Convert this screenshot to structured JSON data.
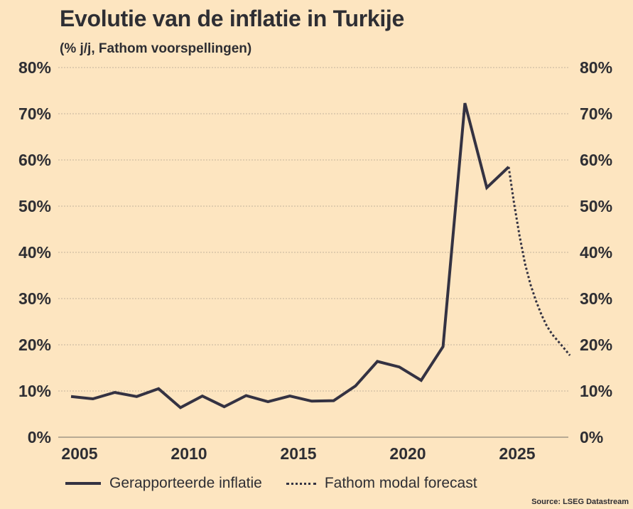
{
  "chart_data": {
    "type": "line",
    "title": "Evolutie van de inflatie in Turkije",
    "subtitle": "(% j/j, Fathom voorspellingen)",
    "xlabel": "",
    "ylabel": "",
    "ylim": [
      0,
      80
    ],
    "xlim": [
      2005,
      2027.8
    ],
    "grid": true,
    "y_ticks": [
      "0%",
      "10%",
      "20%",
      "30%",
      "40%",
      "50%",
      "60%",
      "70%",
      "80%"
    ],
    "y_tick_values": [
      0,
      10,
      20,
      30,
      40,
      50,
      60,
      70,
      80
    ],
    "x_ticks": [
      "2005",
      "2010",
      "2015",
      "2020",
      "2025"
    ],
    "x_tick_values": [
      2005,
      2010,
      2015,
      2020,
      2025
    ],
    "legend_position": "bottom",
    "series": [
      {
        "name": "Gerapporteerde inflatie",
        "style": "solid",
        "color": "#343242",
        "x": [
          2005,
          2006,
          2007,
          2008,
          2009,
          2010,
          2011,
          2012,
          2013,
          2014,
          2015,
          2016,
          2017,
          2018,
          2019,
          2020,
          2021,
          2022,
          2023,
          2024,
          2025
        ],
        "values": [
          8.8,
          8.3,
          9.7,
          8.8,
          10.5,
          6.4,
          8.9,
          6.6,
          9.0,
          7.7,
          8.9,
          7.8,
          7.9,
          11.1,
          16.4,
          15.2,
          12.3,
          19.6,
          72.3,
          54.0,
          58.5
        ]
      },
      {
        "name": "Fathom modal forecast",
        "style": "dotted",
        "color": "#343242",
        "x": [
          2025,
          2025.25,
          2025.5,
          2025.75,
          2026,
          2026.25,
          2026.5,
          2026.75,
          2027,
          2027.4,
          2027.8
        ],
        "values": [
          58.5,
          50.5,
          43.5,
          37.5,
          33.0,
          29.5,
          26.5,
          24.0,
          22.2,
          20.0,
          17.7
        ]
      }
    ]
  },
  "legend": {
    "solid_label": "Gerapporteerde inflatie",
    "dotted_label": "Fathom modal forecast"
  },
  "source": "Source: LSEG Datastream"
}
